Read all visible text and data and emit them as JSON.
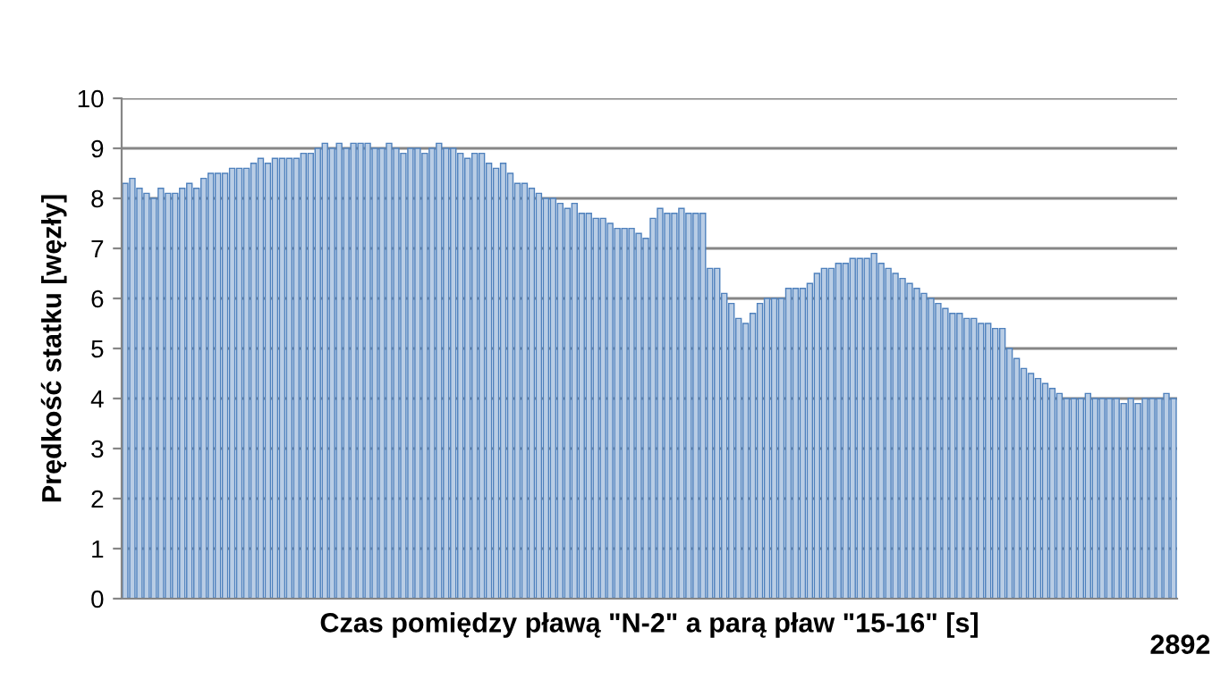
{
  "chart_data": {
    "type": "bar",
    "xlabel": "Czas pomiędzy pławą \"N-2\" a parą pław \"15-16\" [s]",
    "ylabel": "Prędkość statku [węzły]",
    "annotations": [
      "2892"
    ],
    "categories": [
      null,
      null,
      null,
      null,
      null,
      null,
      null,
      null,
      null,
      null,
      null,
      null,
      null,
      null,
      null,
      null,
      null,
      null,
      null,
      null,
      null,
      null,
      null,
      null,
      null,
      null,
      null,
      null,
      null,
      null,
      null,
      null,
      null,
      null,
      null,
      null,
      null,
      null,
      null,
      null,
      null,
      null,
      null,
      null,
      null,
      null,
      null,
      null,
      null,
      null,
      null,
      null,
      null,
      null,
      null,
      null,
      null,
      null,
      null,
      null,
      null,
      null,
      null,
      null,
      null,
      null,
      null,
      null,
      null,
      null,
      null,
      null,
      null,
      null,
      null,
      null,
      null,
      null,
      null,
      null,
      null,
      null,
      null,
      null,
      null,
      null,
      null,
      null,
      null,
      null,
      null,
      null,
      null,
      null,
      null,
      null,
      null,
      null,
      null,
      null,
      null,
      null,
      null,
      null,
      null,
      null,
      null,
      null,
      null,
      null,
      null,
      null,
      null,
      null,
      null,
      null,
      null,
      null,
      null,
      null,
      null,
      null,
      null,
      null,
      null,
      null,
      null,
      null,
      null,
      null,
      null,
      null,
      null,
      null,
      null,
      null,
      null,
      null,
      null,
      null,
      null,
      null,
      null,
      null,
      null,
      null,
      null,
      null
    ],
    "values": [
      8.3,
      8.4,
      8.2,
      8.1,
      8.0,
      8.2,
      8.1,
      8.1,
      8.2,
      8.3,
      8.2,
      8.4,
      8.5,
      8.5,
      8.5,
      8.6,
      8.6,
      8.6,
      8.7,
      8.8,
      8.7,
      8.8,
      8.8,
      8.8,
      8.8,
      8.9,
      8.9,
      9.0,
      9.1,
      9.0,
      9.1,
      9.0,
      9.1,
      9.1,
      9.1,
      9.0,
      9.0,
      9.1,
      9.0,
      8.9,
      9.0,
      9.0,
      8.9,
      9.0,
      9.1,
      9.0,
      9.0,
      8.9,
      8.8,
      8.9,
      8.9,
      8.7,
      8.6,
      8.7,
      8.5,
      8.3,
      8.3,
      8.2,
      8.1,
      8.0,
      8.0,
      7.9,
      7.8,
      7.9,
      7.7,
      7.7,
      7.6,
      7.6,
      7.5,
      7.4,
      7.4,
      7.4,
      7.3,
      7.2,
      7.6,
      7.8,
      7.7,
      7.7,
      7.8,
      7.7,
      7.7,
      7.7,
      6.6,
      6.6,
      6.1,
      5.9,
      5.6,
      5.5,
      5.7,
      5.9,
      6.0,
      6.0,
      6.0,
      6.2,
      6.2,
      6.2,
      6.3,
      6.5,
      6.6,
      6.6,
      6.7,
      6.7,
      6.8,
      6.8,
      6.8,
      6.9,
      6.7,
      6.6,
      6.5,
      6.4,
      6.3,
      6.2,
      6.1,
      6.0,
      5.9,
      5.8,
      5.7,
      5.7,
      5.6,
      5.6,
      5.5,
      5.5,
      5.4,
      5.4,
      5.0,
      4.8,
      4.6,
      4.5,
      4.4,
      4.3,
      4.2,
      4.1,
      4.0,
      4.0,
      4.0,
      4.1,
      4.0,
      4.0,
      4.0,
      4.0,
      3.9,
      4.0,
      3.9,
      4.0,
      4.0,
      4.0,
      4.1,
      4.0
    ],
    "color": "#b9cde5",
    "ylim": [
      0,
      10
    ],
    "yticks": [
      0,
      1,
      2,
      3,
      4,
      5,
      6,
      7,
      8,
      9,
      10
    ],
    "grid": "y",
    "legend": false
  }
}
